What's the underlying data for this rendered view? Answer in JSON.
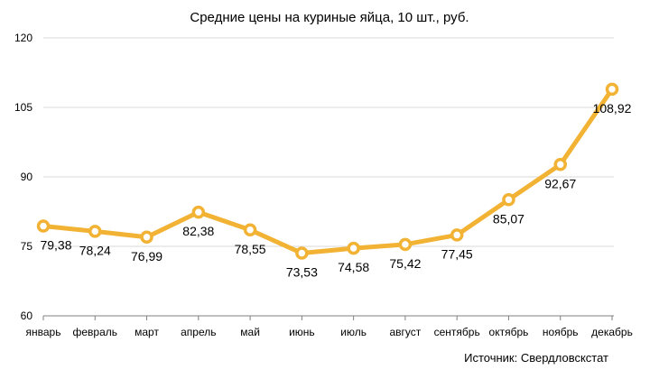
{
  "chart_data": {
    "type": "line",
    "title": "Средние цены на куриные яйца, 10 шт., руб.",
    "xlabel": "",
    "ylabel": "",
    "source_note": "Источник: Свердловскстат",
    "categories": [
      "январь",
      "февраль",
      "март",
      "апрель",
      "май",
      "июнь",
      "июль",
      "август",
      "сентябрь",
      "октябрь",
      "ноябрь",
      "декабрь"
    ],
    "series": [
      {
        "values": [
          79.38,
          78.24,
          76.99,
          82.38,
          78.55,
          73.53,
          74.58,
          75.42,
          77.45,
          85.07,
          92.67,
          108.92
        ]
      }
    ],
    "data_labels": [
      "79,38",
      "78,24",
      "76,99",
      "82,38",
      "78,55",
      "73,53",
      "74,58",
      "75,42",
      "77,45",
      "85,07",
      "92,67",
      "108,92"
    ],
    "yticks": [
      60,
      75,
      90,
      105,
      120
    ],
    "ytick_labels": [
      "60",
      "75",
      "90",
      "105",
      "120"
    ],
    "ylim": [
      60,
      120
    ],
    "grid": true,
    "legend": "none",
    "colors": {
      "line": "#F2B233",
      "marker_fill": "#FFFFFF",
      "grid": "#D9D9D9",
      "axis": "#808080",
      "text": "#000000"
    }
  }
}
